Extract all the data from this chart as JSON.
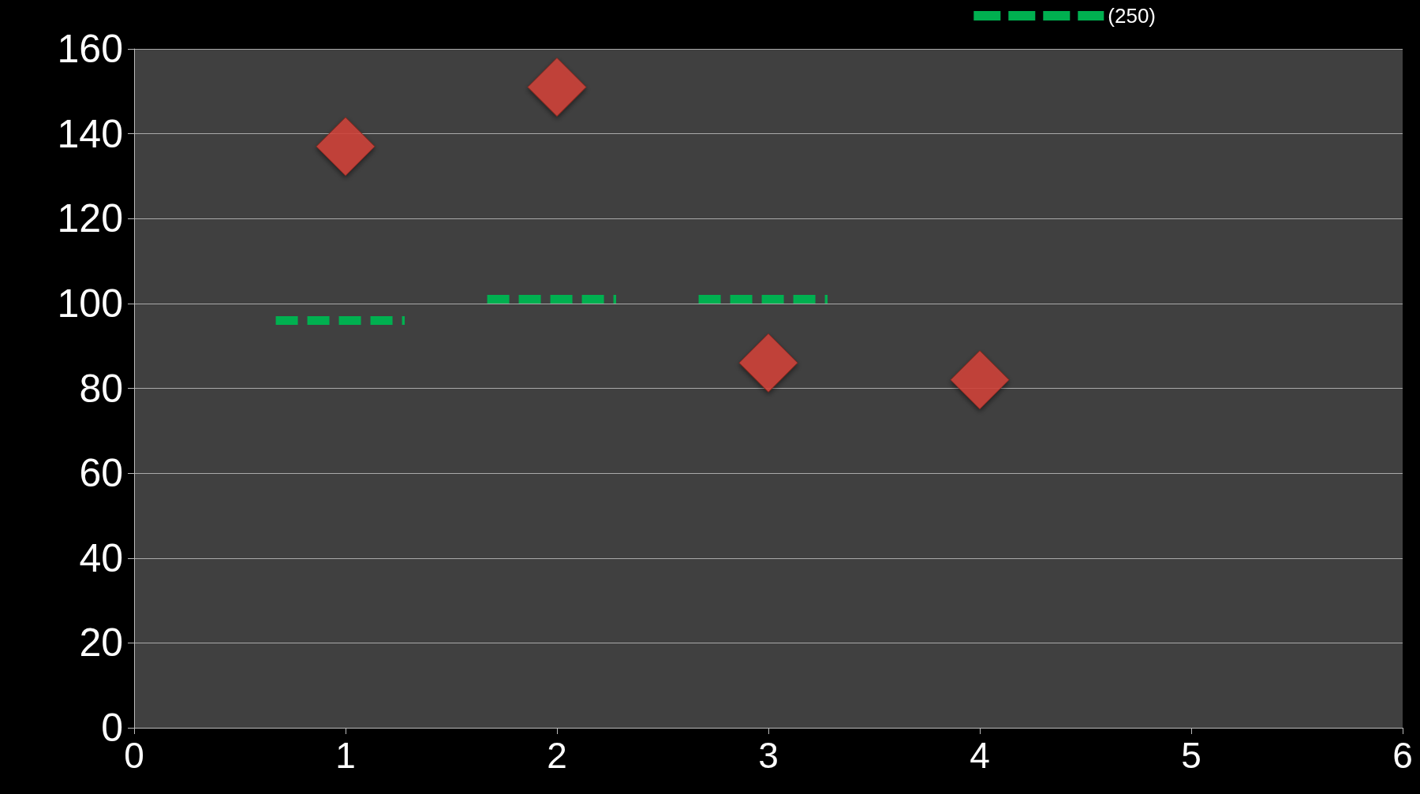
{
  "chart_data": {
    "type": "scatter",
    "xlim": [
      0,
      6
    ],
    "xticks": [
      0,
      1,
      2,
      3,
      4,
      5,
      6
    ],
    "ylim": [
      0,
      160
    ],
    "yticks": [
      0,
      20,
      40,
      60,
      80,
      100,
      120,
      140,
      160
    ],
    "grid": "y",
    "legend": "top right",
    "series": [
      {
        "color": "#d9443c",
        "marker": "diamond",
        "x": [
          1,
          2,
          3,
          4
        ],
        "values": [
          137,
          151,
          86,
          82
        ]
      },
      {
        "type": "line",
        "name": "(250)",
        "color": "#00b050",
        "marker": "none",
        "line_style": "dashed",
        "x": [
          0.67,
          1.28,
          1.5,
          1.67,
          2.28,
          2.5,
          2.67,
          3.28
        ],
        "values": [
          96,
          96,
          null,
          101,
          101,
          null,
          101,
          101
        ]
      }
    ]
  }
}
